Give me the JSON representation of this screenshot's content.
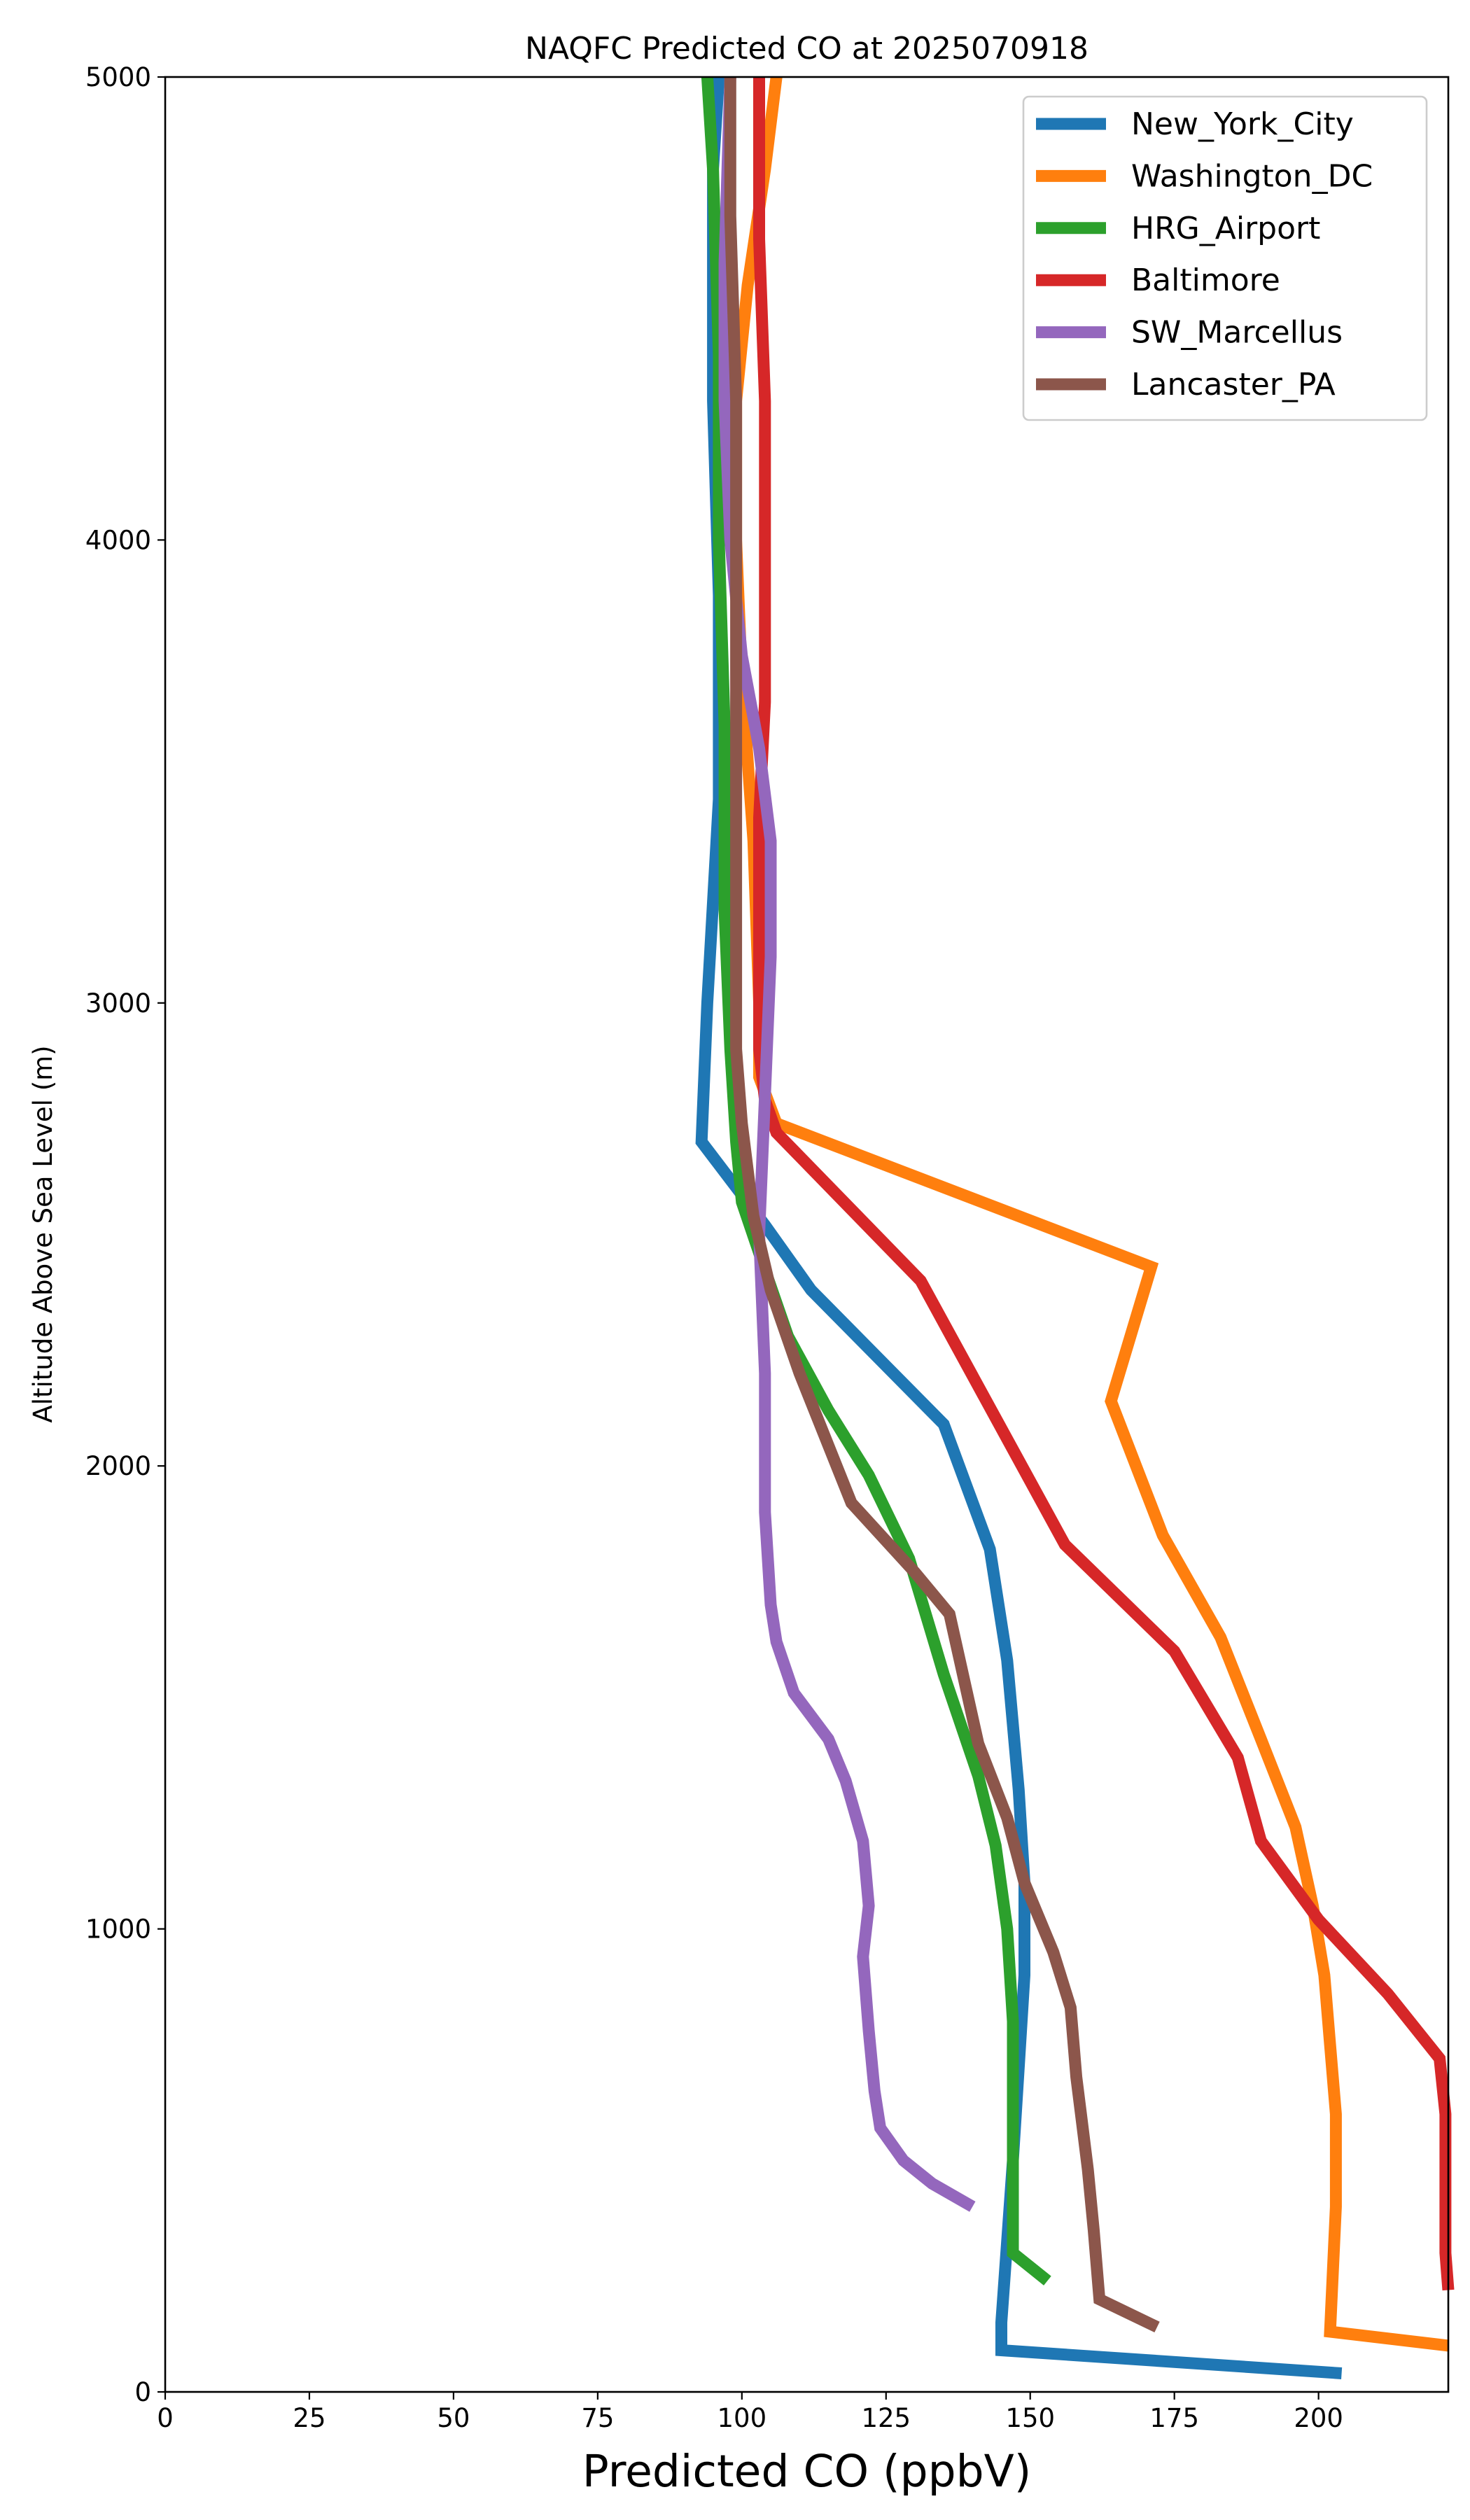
{
  "chart_data": {
    "type": "line",
    "title": "NAQFC Predicted CO at 2025070918",
    "xlabel": "Predicted CO (ppbV)",
    "ylabel": "Altitude Above Sea Level (m)",
    "xlim": [
      0,
      222.5
    ],
    "ylim": [
      0,
      5000
    ],
    "xticks": [
      0,
      25,
      50,
      75,
      100,
      125,
      150,
      175,
      200
    ],
    "yticks": [
      0,
      1000,
      2000,
      3000,
      4000,
      5000
    ],
    "grid": false,
    "legend_position": "top-right",
    "series": [
      {
        "name": "New_York_City",
        "color": "#1f77b4",
        "points": [
          [
            204,
            40
          ],
          [
            145,
            90
          ],
          [
            145,
            150
          ],
          [
            147,
            500
          ],
          [
            148,
            700
          ],
          [
            149,
            900
          ],
          [
            149,
            1100
          ],
          [
            148,
            1300
          ],
          [
            146,
            1580
          ],
          [
            143,
            1820
          ],
          [
            135,
            2090
          ],
          [
            112,
            2380
          ],
          [
            104,
            2520
          ],
          [
            93,
            2700
          ],
          [
            94,
            3000
          ],
          [
            96,
            3440
          ],
          [
            96,
            3880
          ],
          [
            95,
            4300
          ],
          [
            95,
            4800
          ],
          [
            96,
            5000
          ]
        ]
      },
      {
        "name": "Washington_DC",
        "color": "#ff7f0e",
        "points": [
          [
            222.5,
            100
          ],
          [
            202,
            130
          ],
          [
            203,
            400
          ],
          [
            203,
            600
          ],
          [
            202,
            750
          ],
          [
            201,
            900
          ],
          [
            199,
            1050
          ],
          [
            196,
            1220
          ],
          [
            190,
            1410
          ],
          [
            183,
            1630
          ],
          [
            173,
            1850
          ],
          [
            164,
            2140
          ],
          [
            171,
            2430
          ],
          [
            106,
            2740
          ],
          [
            103,
            2840
          ],
          [
            103,
            3000
          ],
          [
            102,
            3350
          ],
          [
            100,
            3700
          ],
          [
            99,
            4000
          ],
          [
            99,
            4300
          ],
          [
            101,
            4550
          ],
          [
            104,
            4800
          ],
          [
            106,
            5000
          ]
        ]
      },
      {
        "name": "HRG_Airport",
        "color": "#2ca02c",
        "points": [
          [
            153,
            240
          ],
          [
            147,
            300
          ],
          [
            147,
            400
          ],
          [
            147,
            600
          ],
          [
            147,
            800
          ],
          [
            146,
            1000
          ],
          [
            144,
            1180
          ],
          [
            141,
            1330
          ],
          [
            135,
            1550
          ],
          [
            129,
            1800
          ],
          [
            122,
            1980
          ],
          [
            115,
            2120
          ],
          [
            108,
            2280
          ],
          [
            103,
            2460
          ],
          [
            100,
            2570
          ],
          [
            99,
            2700
          ],
          [
            98,
            2900
          ],
          [
            97,
            3200
          ],
          [
            97,
            3600
          ],
          [
            96,
            4000
          ],
          [
            96,
            4400
          ],
          [
            95,
            4800
          ],
          [
            94,
            5000
          ]
        ]
      },
      {
        "name": "Baltimore",
        "color": "#d62728",
        "points": [
          [
            222.5,
            220
          ],
          [
            222,
            300
          ],
          [
            222,
            450
          ],
          [
            222,
            600
          ],
          [
            221,
            720
          ],
          [
            212,
            860
          ],
          [
            200,
            1020
          ],
          [
            190,
            1190
          ],
          [
            186,
            1370
          ],
          [
            175,
            1600
          ],
          [
            156,
            1830
          ],
          [
            131,
            2400
          ],
          [
            106,
            2720
          ],
          [
            104,
            2790
          ],
          [
            103,
            2900
          ],
          [
            103,
            3100
          ],
          [
            103,
            3400
          ],
          [
            104,
            3650
          ],
          [
            104,
            3950
          ],
          [
            104,
            4300
          ],
          [
            103,
            4650
          ],
          [
            103,
            5000
          ]
        ]
      },
      {
        "name": "SW_Marcellus",
        "color": "#9467bd",
        "points": [
          [
            140,
            400
          ],
          [
            133,
            450
          ],
          [
            128,
            500
          ],
          [
            124,
            570
          ],
          [
            123,
            650
          ],
          [
            122,
            780
          ],
          [
            121,
            940
          ],
          [
            122,
            1050
          ],
          [
            121,
            1190
          ],
          [
            118,
            1320
          ],
          [
            115,
            1410
          ],
          [
            109,
            1510
          ],
          [
            106,
            1620
          ],
          [
            105,
            1700
          ],
          [
            104,
            1900
          ],
          [
            104,
            2200
          ],
          [
            103,
            2500
          ],
          [
            104,
            2800
          ],
          [
            105,
            3100
          ],
          [
            105,
            3350
          ],
          [
            103,
            3550
          ],
          [
            100,
            3750
          ],
          [
            98,
            4000
          ],
          [
            97,
            4300
          ],
          [
            97,
            4600
          ],
          [
            98,
            5000
          ]
        ]
      },
      {
        "name": "Lancaster_PA",
        "color": "#8c564b",
        "points": [
          [
            172,
            140
          ],
          [
            162,
            200
          ],
          [
            161,
            350
          ],
          [
            160,
            480
          ],
          [
            159,
            580
          ],
          [
            158,
            680
          ],
          [
            157,
            830
          ],
          [
            154,
            950
          ],
          [
            149,
            1100
          ],
          [
            146,
            1240
          ],
          [
            141,
            1400
          ],
          [
            136,
            1680
          ],
          [
            130,
            1770
          ],
          [
            119,
            1920
          ],
          [
            110,
            2200
          ],
          [
            105,
            2380
          ],
          [
            102,
            2540
          ],
          [
            100,
            2740
          ],
          [
            99,
            2900
          ],
          [
            99,
            3100
          ],
          [
            99,
            3400
          ],
          [
            99,
            3700
          ],
          [
            99,
            4000
          ],
          [
            99,
            4300
          ],
          [
            98,
            4700
          ],
          [
            98,
            5000
          ]
        ]
      }
    ]
  }
}
